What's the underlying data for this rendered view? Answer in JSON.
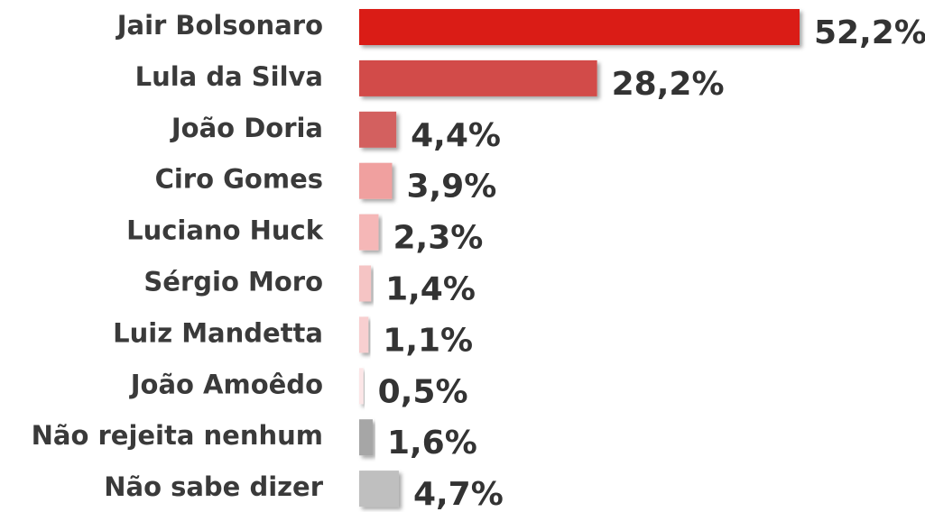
{
  "chart_data": {
    "type": "bar",
    "categories": [
      "Jair Bolsonaro",
      "Lula da Silva",
      "João Doria",
      "Ciro Gomes",
      "Luciano Huck",
      "Sérgio Moro",
      "Luiz Mandetta",
      "João Amoêdo",
      "Não rejeita nenhum",
      "Não sabe dizer"
    ],
    "values": [
      52.2,
      28.2,
      4.4,
      3.9,
      2.3,
      1.4,
      1.1,
      0.5,
      1.6,
      4.7
    ],
    "value_labels": [
      "52,2%",
      "28,2%",
      "4,4%",
      "3,9%",
      "2,3%",
      "1,4%",
      "1,1%",
      "0,5%",
      "1,6%",
      "4,7%"
    ],
    "colors": [
      "#da1f17",
      "#d24b48",
      "#d3605f",
      "#f0a09f",
      "#f5b7b7",
      "#f5c4c4",
      "#f8cfd0",
      "#fce6e7",
      "#a6a6a6",
      "#bfbfbf"
    ]
  }
}
